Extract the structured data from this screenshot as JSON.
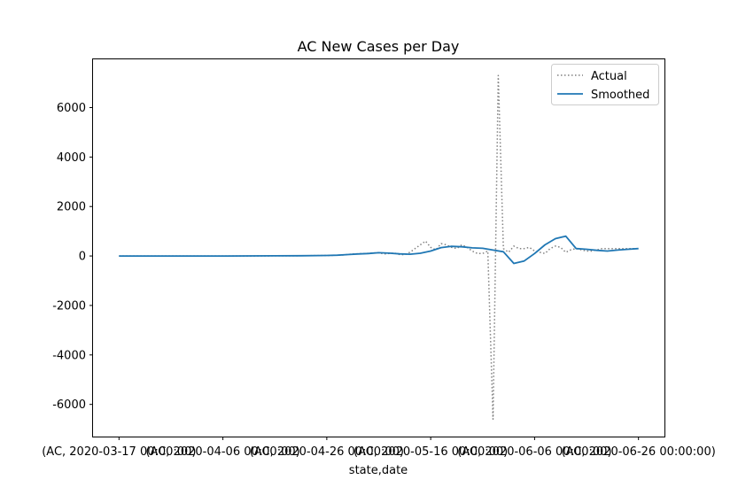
{
  "chart_data": {
    "type": "line",
    "title": "AC New Cases per Day",
    "xlabel": "state,date",
    "ylabel": "",
    "x_tick_labels": [
      "(AC, 2020-03-17 00:00:00)",
      "(AC, 2020-04-06 00:00:00)",
      "(AC, 2020-04-26 00:00:00)",
      "(AC, 2020-05-16 00:00:00)",
      "(AC, 2020-06-06 00:00:00)",
      "(AC, 2020-06-26 00:00:00)"
    ],
    "x_tick_days": [
      0,
      20,
      40,
      60,
      80,
      100
    ],
    "y_ticks": [
      -6000,
      -4000,
      -2000,
      0,
      2000,
      4000,
      6000
    ],
    "xlim": [
      -5,
      105
    ],
    "ylim": [
      -7300,
      7950
    ],
    "legend_position": "top-right",
    "grid": false,
    "series": [
      {
        "name": "Actual",
        "style": "dotted",
        "color": "#808080",
        "x": [
          0,
          5,
          10,
          15,
          20,
          25,
          30,
          35,
          40,
          41,
          42,
          43,
          44,
          45,
          46,
          47,
          48,
          49,
          50,
          51,
          52,
          53,
          54,
          55,
          56,
          57,
          58,
          59,
          60,
          61,
          62,
          63,
          64,
          65,
          66,
          67,
          68,
          69,
          70,
          71,
          72,
          73,
          74,
          75,
          76,
          77,
          78,
          79,
          80,
          81,
          82,
          83,
          84,
          85,
          86,
          87,
          88,
          89,
          90,
          91,
          92,
          93,
          94,
          95,
          96,
          97,
          98,
          99,
          100
        ],
        "y": [
          0,
          0,
          0,
          0,
          0,
          0,
          5,
          10,
          20,
          25,
          30,
          40,
          60,
          80,
          90,
          100,
          110,
          120,
          130,
          80,
          100,
          120,
          60,
          50,
          150,
          300,
          450,
          600,
          350,
          250,
          500,
          450,
          350,
          300,
          450,
          350,
          200,
          100,
          100,
          200,
          -6600,
          7300,
          300,
          150,
          400,
          300,
          300,
          350,
          200,
          150,
          100,
          300,
          400,
          350,
          150,
          250,
          300,
          250,
          200,
          200,
          250,
          300,
          300,
          300,
          300,
          300,
          300,
          300,
          300
        ]
      },
      {
        "name": "Smoothed",
        "style": "solid",
        "color": "#1f77b4",
        "x": [
          0,
          5,
          10,
          15,
          20,
          25,
          30,
          35,
          40,
          42,
          44,
          46,
          48,
          50,
          52,
          54,
          56,
          58,
          60,
          62,
          64,
          66,
          68,
          70,
          72,
          74,
          76,
          77,
          78,
          80,
          82,
          84,
          86,
          88,
          90,
          92,
          94,
          96,
          98,
          100
        ],
        "y": [
          0,
          0,
          0,
          0,
          0,
          2,
          5,
          10,
          20,
          30,
          55,
          80,
          100,
          130,
          115,
          85,
          70,
          110,
          200,
          340,
          390,
          370,
          330,
          310,
          240,
          170,
          -300,
          -250,
          -200,
          100,
          450,
          700,
          800,
          300,
          270,
          230,
          200,
          240,
          270,
          300
        ]
      }
    ]
  }
}
